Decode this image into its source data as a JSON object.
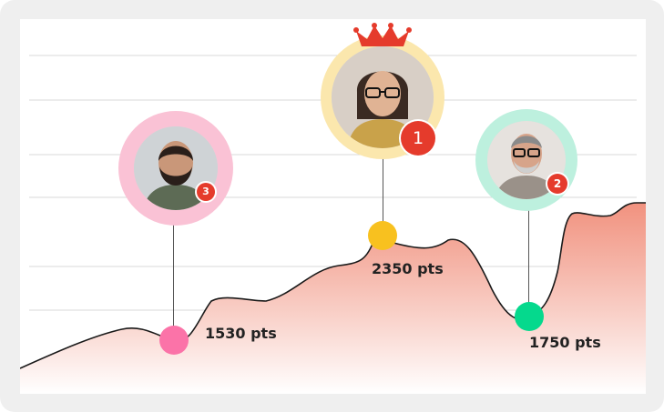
{
  "leaderboard": {
    "colors": {
      "grid": "#d9d9d9",
      "area_top": "#f08c78",
      "area_bottom": "#ffffff",
      "line": "#1a1a1a",
      "badge": "#e53b2c",
      "crown": "#e53b2c"
    },
    "players": [
      {
        "rank": "1",
        "points": "2350 pts",
        "ring_color": "#fbe7ad",
        "dot_color": "#f8c11f",
        "avatar": "woman-with-glasses-avatar"
      },
      {
        "rank": "2",
        "points": "1750 pts",
        "ring_color": "#bdf0de",
        "dot_color": "#05d98d",
        "avatar": "man-with-glasses-avatar"
      },
      {
        "rank": "3",
        "points": "1530 pts",
        "ring_color": "#fac2d5",
        "dot_color": "#fb73a8",
        "avatar": "bearded-man-avatar"
      }
    ],
    "crown_icon": "crown-icon"
  }
}
